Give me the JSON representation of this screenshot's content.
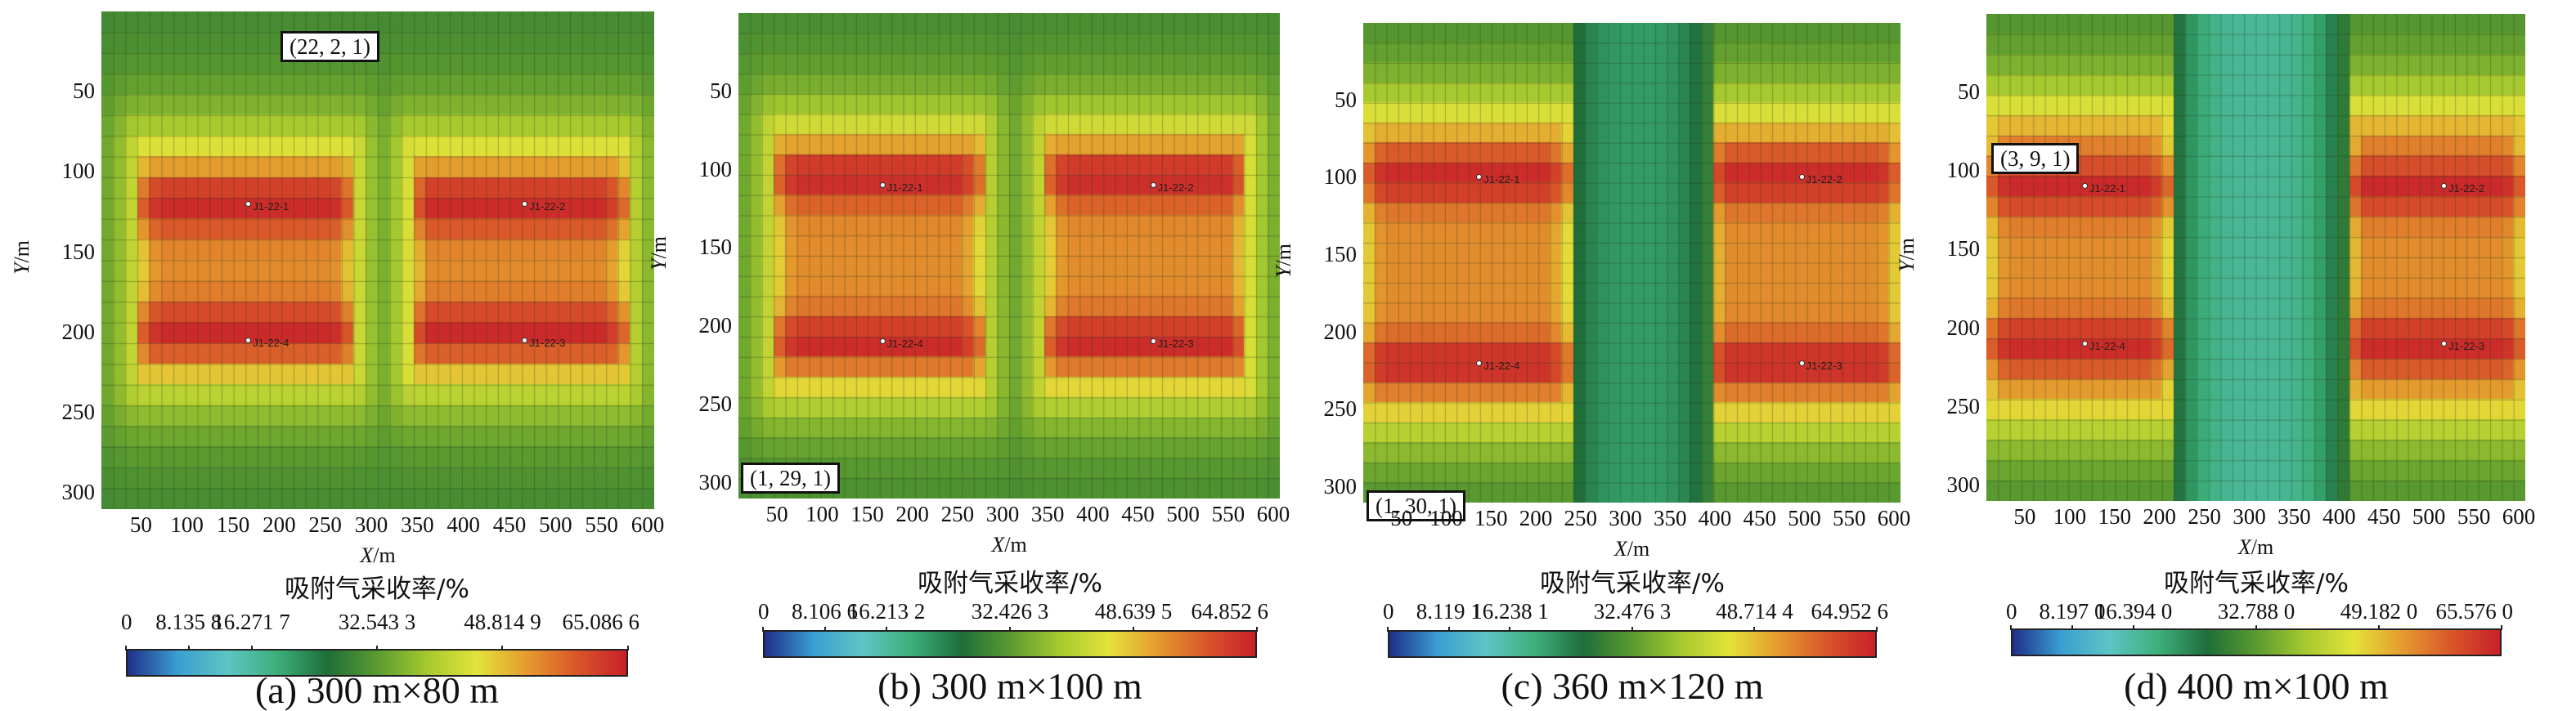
{
  "figure": {
    "colorbar_title": "吸附气采收率/%",
    "x_axis_label": {
      "var": "X",
      "unit": "/m"
    },
    "y_axis_label": {
      "var": "Y",
      "unit": "/m"
    },
    "colormap_stops": [
      "#1f2f8a",
      "#3a9fd0",
      "#5ec4c4",
      "#3daf7a",
      "#1f6e3a",
      "#5a9a30",
      "#a5c92f",
      "#e3e33a",
      "#e59b2e",
      "#d9562a",
      "#c8202a"
    ]
  },
  "chart_data": [
    {
      "type": "heatmap",
      "id": "a",
      "caption": "(a) 300 m×80 m",
      "title": "",
      "xlabel": "X/m",
      "ylabel": "Y/m",
      "xlim": [
        0,
        600
      ],
      "ylim": [
        0,
        310
      ],
      "x_ticks": [
        "50",
        "100",
        "150",
        "200",
        "250",
        "300",
        "350",
        "400",
        "450",
        "500",
        "550",
        "600"
      ],
      "y_ticks": [
        "50",
        "100",
        "150",
        "200",
        "250",
        "300"
      ],
      "cell_annotation": "(22, 2, 1)",
      "colorbar": {
        "label": "吸附气采收率/%",
        "min": 0,
        "max": 65.0866,
        "tick_labels": [
          "0",
          "8.135 8",
          "16.271 7",
          "32.543 3",
          "48.814 9",
          "65.086 6"
        ],
        "tick_values": [
          0,
          8.1358,
          16.2717,
          32.5433,
          48.8149,
          65.0866
        ]
      },
      "wells": [
        {
          "name": "J1-22-1",
          "x": 160,
          "y": 120
        },
        {
          "name": "J1-22-2",
          "x": 460,
          "y": 120
        },
        {
          "name": "J1-22-3",
          "x": 460,
          "y": 205
        },
        {
          "name": "J1-22-4",
          "x": 160,
          "y": 205
        }
      ],
      "stimulated_zones": [
        {
          "x0": 40,
          "x1": 275,
          "y0": 85,
          "y1": 230
        },
        {
          "x0": 335,
          "x1": 570,
          "y0": 85,
          "y1": 230
        }
      ],
      "high_rows": [
        120,
        200
      ],
      "center_gap_low": false,
      "value_range_observed": {
        "min_approx": 30,
        "max": 65.0866
      }
    },
    {
      "type": "heatmap",
      "id": "b",
      "caption": "(b) 300 m×100 m",
      "title": "",
      "xlabel": "X/m",
      "ylabel": "Y/m",
      "xlim": [
        0,
        600
      ],
      "ylim": [
        0,
        310
      ],
      "x_ticks": [
        "50",
        "100",
        "150",
        "200",
        "250",
        "300",
        "350",
        "400",
        "450",
        "500",
        "550",
        "600"
      ],
      "y_ticks": [
        "50",
        "100",
        "150",
        "200",
        "250",
        "300"
      ],
      "cell_annotation": "(1, 29, 1)",
      "colorbar": {
        "label": "吸附气采收率/%",
        "min": 0,
        "max": 64.8526,
        "tick_labels": [
          "0",
          "8.106 6",
          "16.213 2",
          "32.426 3",
          "48.639 5",
          "64.852 6"
        ],
        "tick_values": [
          0,
          8.1066,
          16.2132,
          32.4263,
          48.6395,
          64.8526
        ]
      },
      "wells": [
        {
          "name": "J1-22-1",
          "x": 160,
          "y": 110
        },
        {
          "name": "J1-22-2",
          "x": 460,
          "y": 110
        },
        {
          "name": "J1-22-3",
          "x": 460,
          "y": 210
        },
        {
          "name": "J1-22-4",
          "x": 160,
          "y": 210
        }
      ],
      "stimulated_zones": [
        {
          "x0": 40,
          "x1": 270,
          "y0": 75,
          "y1": 240
        },
        {
          "x0": 340,
          "x1": 565,
          "y0": 75,
          "y1": 240
        }
      ],
      "high_rows": [
        105,
        210
      ],
      "center_gap_low": false,
      "value_range_observed": {
        "min_approx": 30,
        "max": 64.8526
      }
    },
    {
      "type": "heatmap",
      "id": "c",
      "caption": "(c) 360 m×120 m",
      "title": "",
      "xlabel": "X/m",
      "ylabel": "Y/m",
      "xlim": [
        0,
        600
      ],
      "ylim": [
        0,
        310
      ],
      "x_ticks": [
        "50",
        "100",
        "150",
        "200",
        "250",
        "300",
        "350",
        "400",
        "450",
        "500",
        "550",
        "600"
      ],
      "y_ticks": [
        "50",
        "100",
        "150",
        "200",
        "250",
        "300"
      ],
      "cell_annotation": "(1, 30, 1)",
      "colorbar": {
        "label": "吸附气采收率/%",
        "min": 0,
        "max": 64.9526,
        "tick_labels": [
          "0",
          "8.119 1",
          "16.238 1",
          "32.476 3",
          "48.714 4",
          "64.952 6"
        ],
        "tick_values": [
          0,
          8.1191,
          16.2381,
          32.4763,
          48.7144,
          64.9526
        ]
      },
      "wells": [
        {
          "name": "J1-22-1",
          "x": 130,
          "y": 100
        },
        {
          "name": "J1-22-2",
          "x": 490,
          "y": 100
        },
        {
          "name": "J1-22-3",
          "x": 490,
          "y": 220
        },
        {
          "name": "J1-22-4",
          "x": 130,
          "y": 220
        }
      ],
      "stimulated_zones": [
        {
          "x0": 0,
          "x1": 230,
          "y0": 60,
          "y1": 255
        },
        {
          "x0": 385,
          "x1": 600,
          "y0": 60,
          "y1": 255
        }
      ],
      "high_rows": [
        100,
        220
      ],
      "center_gap_low": true,
      "value_range_observed": {
        "min_approx": 22,
        "max": 64.9526
      }
    },
    {
      "type": "heatmap",
      "id": "d",
      "caption": "(d) 400 m×100 m",
      "title": "",
      "xlabel": "X/m",
      "ylabel": "Y/m",
      "xlim": [
        0,
        600
      ],
      "ylim": [
        0,
        310
      ],
      "x_ticks": [
        "50",
        "100",
        "150",
        "200",
        "250",
        "300",
        "350",
        "400",
        "450",
        "500",
        "550",
        "600"
      ],
      "y_ticks": [
        "50",
        "100",
        "150",
        "200",
        "250",
        "300"
      ],
      "cell_annotation": "(3, 9, 1)",
      "colorbar": {
        "label": "吸附气采收率/%",
        "min": 0,
        "max": 65.576,
        "tick_labels": [
          "0",
          "8.197 0",
          "16.394 0",
          "32.788 0",
          "49.182 0",
          "65.576 0"
        ],
        "tick_values": [
          0,
          8.197,
          16.394,
          32.788,
          49.182,
          65.576
        ]
      },
      "wells": [
        {
          "name": "J1-22-1",
          "x": 110,
          "y": 110
        },
        {
          "name": "J1-22-2",
          "x": 510,
          "y": 110
        },
        {
          "name": "J1-22-3",
          "x": 510,
          "y": 210
        },
        {
          "name": "J1-22-4",
          "x": 110,
          "y": 210
        }
      ],
      "stimulated_zones": [
        {
          "x0": 0,
          "x1": 205,
          "y0": 60,
          "y1": 255
        },
        {
          "x0": 400,
          "x1": 600,
          "y0": 60,
          "y1": 255
        }
      ],
      "high_rows": [
        110,
        210
      ],
      "center_gap_low": true,
      "value_range_observed": {
        "min_approx": 14,
        "max": 65.576
      }
    }
  ]
}
